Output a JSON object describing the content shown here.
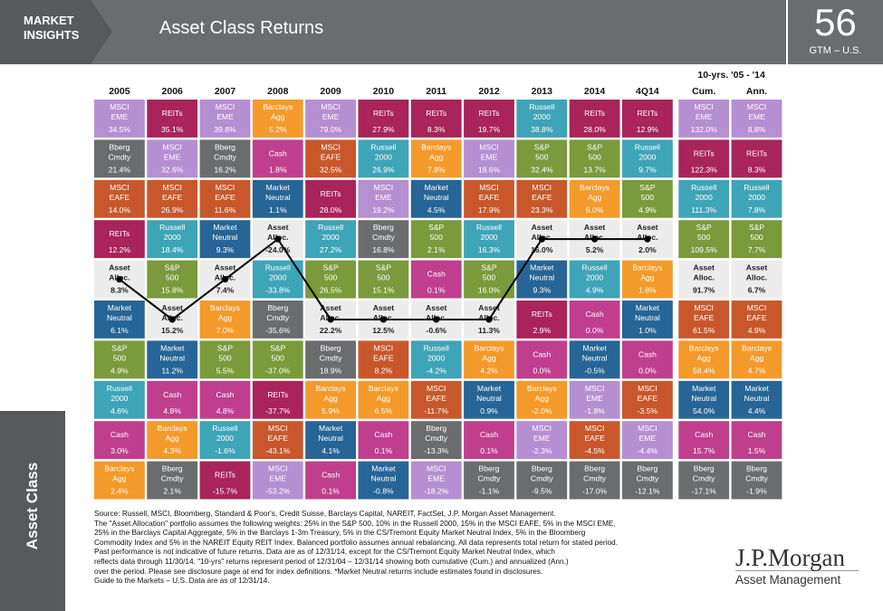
{
  "header": {
    "brand": "MARKET\nINSIGHTS",
    "title": "Asset Class Returns",
    "page_number": "56",
    "page_sub": "GTM – U.S."
  },
  "sidebar": {
    "label": "Asset Class"
  },
  "chart_data": {
    "type": "table",
    "cum_header_top": "10-yrs. '05 - '14",
    "columns": [
      "2005",
      "2006",
      "2007",
      "2008",
      "2009",
      "2010",
      "2011",
      "2012",
      "2013",
      "2014",
      "4Q14",
      "Cum.",
      "Ann."
    ],
    "colors": {
      "MSCI EME": "#b58fd1",
      "REITs": "#a8245a",
      "Barclays Agg": "#f49a2b",
      "Russell 2000": "#3ea4b7",
      "Bberg Cmdty": "#6b6c6e",
      "Cash": "#bf3f8e",
      "MSCI EAFE": "#c8582b",
      "Market Neutral": "#266596",
      "S&P 500": "#7a9a3b",
      "Asset Alloc.": "#ececec"
    },
    "grid": [
      [
        [
          "MSCI EME",
          "34.5%"
        ],
        [
          "Bberg Cmdty",
          "21.4%"
        ],
        [
          "MSCI EAFE",
          "14.0%"
        ],
        [
          "REITs",
          "12.2%"
        ],
        [
          "Asset Alloc.",
          "8.3%"
        ],
        [
          "Market Neutral",
          "6.1%"
        ],
        [
          "S&P 500",
          "4.9%"
        ],
        [
          "Russell 2000",
          "4.6%"
        ],
        [
          "Cash",
          "3.0%"
        ],
        [
          "Barclays Agg",
          "2.4%"
        ]
      ],
      [
        [
          "REITs",
          "35.1%"
        ],
        [
          "MSCI EME",
          "32.6%"
        ],
        [
          "MSCI EAFE",
          "26.9%"
        ],
        [
          "Russell 2000",
          "18.4%"
        ],
        [
          "S&P 500",
          "15.8%"
        ],
        [
          "Asset Alloc.",
          "15.2%"
        ],
        [
          "Market Neutral",
          "11.2%"
        ],
        [
          "Cash",
          "4.8%"
        ],
        [
          "Barclays Agg",
          "4.3%"
        ],
        [
          "Bberg Cmdty",
          "2.1%"
        ]
      ],
      [
        [
          "MSCI EME",
          "39.8%"
        ],
        [
          "Bberg Cmdty",
          "16.2%"
        ],
        [
          "MSCI EAFE",
          "11.6%"
        ],
        [
          "Market Neutral",
          "9.3%"
        ],
        [
          "Asset Alloc.",
          "7.4%"
        ],
        [
          "Barclays Agg",
          "7.0%"
        ],
        [
          "S&P 500",
          "5.5%"
        ],
        [
          "Cash",
          "4.8%"
        ],
        [
          "Russell 2000",
          "-1.6%"
        ],
        [
          "REITs",
          "-15.7%"
        ]
      ],
      [
        [
          "Barclays Agg",
          "5.2%"
        ],
        [
          "Cash",
          "1.8%"
        ],
        [
          "Market Neutral",
          "1.1%"
        ],
        [
          "Asset Alloc.",
          "-24.0%"
        ],
        [
          "Russell 2000",
          "-33.8%"
        ],
        [
          "Bberg Cmdty",
          "-35.6%"
        ],
        [
          "S&P 500",
          "-37.0%"
        ],
        [
          "REITs",
          "-37.7%"
        ],
        [
          "MSCI EAFE",
          "-43.1%"
        ],
        [
          "MSCI EME",
          "-53.2%"
        ]
      ],
      [
        [
          "MSCI EME",
          "79.0%"
        ],
        [
          "MSCI EAFE",
          "32.5%"
        ],
        [
          "REITs",
          "28.0%"
        ],
        [
          "Russell 2000",
          "27.2%"
        ],
        [
          "S&P 500",
          "26.5%"
        ],
        [
          "Asset Alloc.",
          "22.2%"
        ],
        [
          "Bberg Cmdty",
          "18.9%"
        ],
        [
          "Barclays Agg",
          "5.9%"
        ],
        [
          "Market Neutral",
          "4.1%"
        ],
        [
          "Cash",
          "0.1%"
        ]
      ],
      [
        [
          "REITs",
          "27.9%"
        ],
        [
          "Russell 2000",
          "26.9%"
        ],
        [
          "MSCI EME",
          "19.2%"
        ],
        [
          "Bberg Cmdty",
          "16.8%"
        ],
        [
          "S&P 500",
          "15.1%"
        ],
        [
          "Asset Alloc.",
          "12.5%"
        ],
        [
          "MSCI EAFE",
          "8.2%"
        ],
        [
          "Barclays Agg",
          "6.5%"
        ],
        [
          "Cash",
          "0.1%"
        ],
        [
          "Market Neutral",
          "-0.8%"
        ]
      ],
      [
        [
          "REITs",
          "8.3%"
        ],
        [
          "Barclays Agg",
          "7.8%"
        ],
        [
          "Market Neutral",
          "4.5%"
        ],
        [
          "S&P 500",
          "2.1%"
        ],
        [
          "Cash",
          "0.1%"
        ],
        [
          "Asset Alloc.",
          "-0.6%"
        ],
        [
          "Russell 2000",
          "-4.2%"
        ],
        [
          "MSCI EAFE",
          "-11.7%"
        ],
        [
          "Bberg Cmdty",
          "-13.3%"
        ],
        [
          "MSCI EME",
          "-18.2%"
        ]
      ],
      [
        [
          "REITs",
          "19.7%"
        ],
        [
          "MSCI EME",
          "18.6%"
        ],
        [
          "MSCI EAFE",
          "17.9%"
        ],
        [
          "Russell 2000",
          "16.3%"
        ],
        [
          "S&P 500",
          "16.0%"
        ],
        [
          "Asset Alloc.",
          "11.3%"
        ],
        [
          "Barclays Agg",
          "4.2%"
        ],
        [
          "Market Neutral",
          "0.9%"
        ],
        [
          "Cash",
          "0.1%"
        ],
        [
          "Bberg Cmdty",
          "-1.1%"
        ]
      ],
      [
        [
          "Russell 2000",
          "38.8%"
        ],
        [
          "S&P 500",
          "32.4%"
        ],
        [
          "MSCI EAFE",
          "23.3%"
        ],
        [
          "Asset Alloc.",
          "16.0%"
        ],
        [
          "Market Neutral",
          "9.3%"
        ],
        [
          "REITs",
          "2.9%"
        ],
        [
          "Cash",
          "0.0%"
        ],
        [
          "Barclays Agg",
          "-2.0%"
        ],
        [
          "MSCI EME",
          "-2.3%"
        ],
        [
          "Bberg Cmdty",
          "-9.5%"
        ]
      ],
      [
        [
          "REITs",
          "28.0%"
        ],
        [
          "S&P 500",
          "13.7%"
        ],
        [
          "Barclays Agg",
          "6.0%"
        ],
        [
          "Asset Alloc.",
          "5.2%"
        ],
        [
          "Russell 2000",
          "4.9%"
        ],
        [
          "Cash",
          "0.0%"
        ],
        [
          "Market Neutral",
          "-0.5%"
        ],
        [
          "MSCI EME",
          "-1.8%"
        ],
        [
          "MSCI EAFE",
          "-4.5%"
        ],
        [
          "Bberg Cmdty",
          "-17.0%"
        ]
      ],
      [
        [
          "REITs",
          "12.9%"
        ],
        [
          "Russell 2000",
          "9.7%"
        ],
        [
          "S&P 500",
          "4.9%"
        ],
        [
          "Asset Alloc.",
          "2.0%"
        ],
        [
          "Barclays Agg",
          "1.8%"
        ],
        [
          "Market Neutral",
          "1.0%"
        ],
        [
          "Cash",
          "0.0%"
        ],
        [
          "MSCI EAFE",
          "-3.5%"
        ],
        [
          "MSCI EME",
          "-4.4%"
        ],
        [
          "Bberg Cmdty",
          "-12.1%"
        ]
      ],
      [
        [
          "MSCI EME",
          "132.0%"
        ],
        [
          "REITs",
          "122.3%"
        ],
        [
          "Russell 2000",
          "111.3%"
        ],
        [
          "S&P 500",
          "109.5%"
        ],
        [
          "Asset Alloc.",
          "91.7%"
        ],
        [
          "MSCI EAFE",
          "61.5%"
        ],
        [
          "Barclays Agg",
          "58.4%"
        ],
        [
          "Market Neutral",
          "54.0%"
        ],
        [
          "Cash",
          "15.7%"
        ],
        [
          "Bberg Cmdty",
          "-17.1%"
        ]
      ],
      [
        [
          "MSCI EME",
          "8.8%"
        ],
        [
          "REITs",
          "8.3%"
        ],
        [
          "Russell 2000",
          "7.8%"
        ],
        [
          "S&P 500",
          "7.7%"
        ],
        [
          "Asset Alloc.",
          "6.7%"
        ],
        [
          "MSCI EAFE",
          "4.9%"
        ],
        [
          "Barclays Agg",
          "4.7%"
        ],
        [
          "Market Neutral",
          "4.4%"
        ],
        [
          "Cash",
          "1.5%"
        ],
        [
          "Bberg Cmdty",
          "-1.9%"
        ]
      ]
    ],
    "line_series": "Asset Alloc."
  },
  "footer": {
    "lines": [
      "Source: Russell, MSCI, Bloomberg, Standard & Poor's, Credit Suisse, Barclays Capital, NAREIT, FactSet, J.P. Morgan Asset Management.",
      "The \"Asset Allocation\" portfolio assumes the following weights: 25% in the S&P 500, 10% in the Russell 2000, 15% in the MSCI EAFE, 5% in the MSCI EME,",
      "25% in the Barclays Capital Aggregate, 5% in the Barclays 1-3m Treasury, 5% in the CS/Tremont Equity Market Neutral Index, 5% in the Bloomberg",
      "Commodity Index and 5% in the NAREIT Equity REIT Index. Balanced portfolio assumes annual rebalancing. All data represents total return for stated period.",
      "Past performance is not indicative of future returns. Data are as of 12/31/14, except for the CS/Tremont Equity Market Neutral Index, which",
      "reflects data through 11/30/14. \"10-yrs\" returns represent period of 12/31/04 – 12/31/14 showing both cumulative (Cum.) and annualized (Ann.)",
      "over the period. Please see disclosure page at end for index definitions. *Market Neutral returns include estimates found in disclosures.",
      "Guide to the Markets – U.S. Data are as of 12/31/14."
    ]
  },
  "logo": {
    "main": "J.P.Morgan",
    "sub": "Asset Management"
  }
}
